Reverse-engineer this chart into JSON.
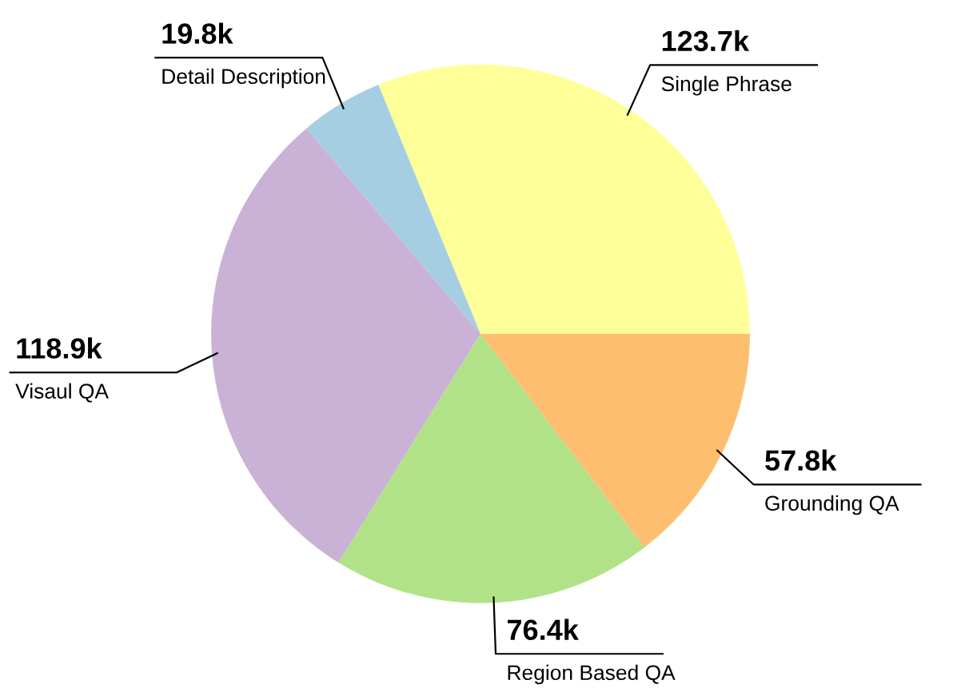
{
  "chart_data": {
    "type": "pie",
    "categories": [
      "Single Phrase",
      "Detail Description",
      "Visaul QA",
      "Region Based QA",
      "Grounding QA"
    ],
    "values": [
      123.7,
      19.8,
      118.9,
      76.4,
      57.8
    ],
    "value_labels": [
      "123.7k",
      "19.8k",
      "118.9k",
      "76.4k",
      "57.8k"
    ],
    "colors": [
      "#ffff99",
      "#a6cee3",
      "#c9b2d6",
      "#b2e288",
      "#fdbf6f"
    ],
    "legend": false
  }
}
